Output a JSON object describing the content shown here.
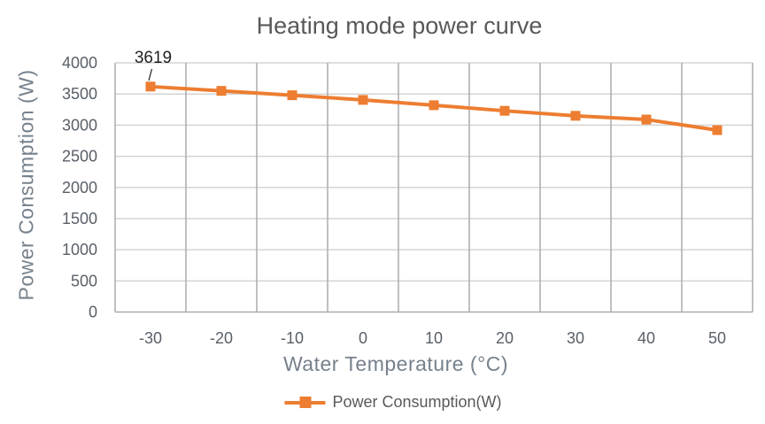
{
  "chart_data": {
    "type": "line",
    "title": "Heating mode power curve",
    "xlabel": "Water Temperature (°C)",
    "ylabel": "Power Consumption (W)",
    "categories": [
      "-30",
      "-20",
      "-10",
      "0",
      "10",
      "20",
      "30",
      "40",
      "50"
    ],
    "series": [
      {
        "name": "Power Consumption(W)",
        "values": [
          3619,
          3550,
          3480,
          3405,
          3320,
          3230,
          3150,
          3090,
          2920
        ]
      }
    ],
    "ylim": [
      0,
      4000
    ],
    "y_ticks": [
      0,
      500,
      1000,
      1500,
      2000,
      2500,
      3000,
      3500,
      4000
    ],
    "data_labels": [
      {
        "series": 0,
        "index": 0,
        "text": "3619"
      }
    ],
    "legend": {
      "label": "Power Consumption(W)",
      "position": "bottom"
    },
    "grid": true,
    "colors": {
      "series": "#ED7D31",
      "grid_horizontal": "#D4D4D4",
      "grid_vertical": "#ABABAB",
      "axis_line": "#ABABAB",
      "title_text": "#595959",
      "axis_title_text": "#76818C",
      "tick_text": "#596068",
      "data_label_text": "#1F1F1F",
      "legend_text": "#595959"
    }
  }
}
